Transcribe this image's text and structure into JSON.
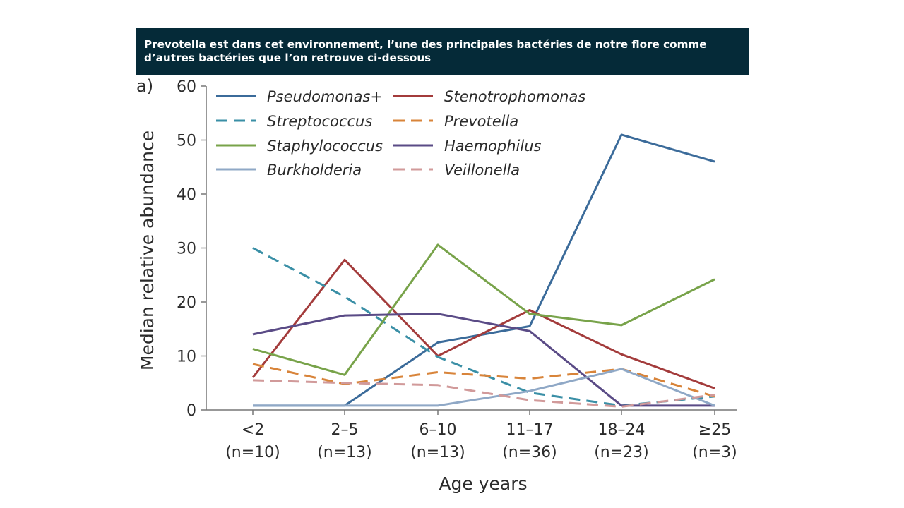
{
  "slide": {
    "caption_line1": "Prevotella est dans cet environnement, l’une des principales  bactéries de notre flore comme",
    "caption_line2": "d’autres bactéries que l’on retrouve ci-dessous"
  },
  "chart_data": {
    "type": "line",
    "panel_label": "a)",
    "xlabel": "Age years",
    "ylabel": "Median relative abundance",
    "categories": [
      "<2",
      "2–5",
      "6–10",
      "11–17",
      "18–24",
      "≥25"
    ],
    "category_counts": [
      "(n=10)",
      "(n=13)",
      "(n=13)",
      "(n=36)",
      "(n=23)",
      "(n=3)"
    ],
    "ylim": [
      0,
      60
    ],
    "yticks": [
      "0",
      "10",
      "20",
      "30",
      "40",
      "50",
      "60"
    ],
    "grid": false,
    "legend_position": "top",
    "series": [
      {
        "name": "Pseudomonas+",
        "color": "#3b6b9a",
        "dashed": false,
        "values": [
          0.8,
          0.8,
          12.5,
          15.5,
          51,
          46
        ]
      },
      {
        "name": "Stenotrophomonas",
        "color": "#a33b3b",
        "dashed": false,
        "values": [
          6,
          27.8,
          10,
          18.5,
          10.3,
          4
        ]
      },
      {
        "name": "Streptococcus",
        "color": "#3a8fa6",
        "dashed": true,
        "values": [
          30,
          21,
          9.8,
          3.2,
          0.8,
          2.5
        ]
      },
      {
        "name": "Prevotella",
        "color": "#d8843a",
        "dashed": true,
        "values": [
          8.5,
          4.8,
          7,
          5.8,
          7.6,
          2.5
        ]
      },
      {
        "name": "Staphylococcus",
        "color": "#78a34a",
        "dashed": false,
        "values": [
          11.3,
          6.5,
          30.6,
          17.8,
          15.7,
          24.2
        ]
      },
      {
        "name": "Haemophilus",
        "color": "#5a4b86",
        "dashed": false,
        "values": [
          14,
          17.5,
          17.8,
          14.6,
          0.8,
          0.8
        ]
      },
      {
        "name": "Burkholderia",
        "color": "#8fa8c6",
        "dashed": false,
        "values": [
          0.8,
          0.8,
          0.8,
          3.5,
          7.6,
          0.8
        ]
      },
      {
        "name": "Veillonella",
        "color": "#d19a9a",
        "dashed": true,
        "values": [
          5.5,
          5,
          4.6,
          1.8,
          0.6,
          2.8
        ]
      }
    ]
  }
}
